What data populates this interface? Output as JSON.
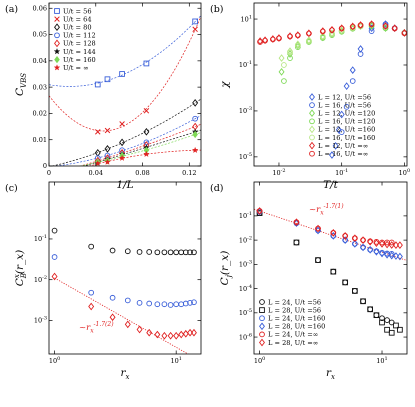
{
  "chart_data": [
    {
      "panel": "(a)",
      "type": "scatter",
      "xlabel": "1/L",
      "ylabel": "C_VBS",
      "xscale": "linear",
      "yscale": "linear",
      "xlim": [
        0,
        0.13
      ],
      "ylim": [
        0,
        0.062
      ],
      "xticks": [
        "0",
        "0.04",
        "0.08",
        "0.12"
      ],
      "yticks": [
        "0",
        "0.01",
        "0.02",
        "0.03",
        "0.04",
        "0.05",
        "0.06"
      ],
      "fit_lines": "dashed quadratic fits per series",
      "legend_position": "top-left",
      "series": [
        {
          "name": "U/t = 56",
          "color": "#3a5fd9",
          "marker": "square-open",
          "x": [
            0.0417,
            0.05,
            0.0625,
            0.0833,
            0.125
          ],
          "y": [
            0.031,
            0.033,
            0.035,
            0.039,
            0.055
          ]
        },
        {
          "name": "U/t = 64",
          "color": "#e02020",
          "marker": "x",
          "x": [
            0.0417,
            0.05,
            0.0625,
            0.0833,
            0.125
          ],
          "y": [
            0.013,
            0.0135,
            0.016,
            0.021,
            0.052
          ]
        },
        {
          "name": "U/t = 80",
          "color": "#111111",
          "marker": "diamond-open",
          "x": [
            0.0417,
            0.05,
            0.0625,
            0.0833,
            0.125
          ],
          "y": [
            0.005,
            0.0065,
            0.009,
            0.013,
            0.024
          ]
        },
        {
          "name": "U/t = 112",
          "color": "#3a5fd9",
          "marker": "circle-open",
          "x": [
            0.0417,
            0.05,
            0.0625,
            0.0833,
            0.125
          ],
          "y": [
            0.003,
            0.004,
            0.006,
            0.009,
            0.018
          ]
        },
        {
          "name": "U/t = 128",
          "color": "#e02020",
          "marker": "diamond-open",
          "x": [
            0.0417,
            0.05,
            0.0625,
            0.0833,
            0.125
          ],
          "y": [
            0.002,
            0.003,
            0.005,
            0.008,
            0.015
          ]
        },
        {
          "name": "U/t = 144",
          "color": "#111111",
          "marker": "star",
          "x": [
            0.0417,
            0.05,
            0.0625,
            0.0833,
            0.125
          ],
          "y": [
            0.0015,
            0.0025,
            0.0045,
            0.007,
            0.013
          ]
        },
        {
          "name": "U/t = 160",
          "color": "#7ed957",
          "marker": "diamond",
          "x": [
            0.0417,
            0.05,
            0.0625,
            0.0833,
            0.125
          ],
          "y": [
            0.0015,
            0.002,
            0.004,
            0.006,
            0.012
          ]
        },
        {
          "name": "U/t = ∞",
          "color": "#e02020",
          "marker": "star",
          "x": [
            0.0417,
            0.05,
            0.0625,
            0.0833,
            0.125
          ],
          "y": [
            0.001,
            0.0015,
            0.003,
            0.0045,
            0.006
          ]
        }
      ]
    },
    {
      "panel": "(b)",
      "type": "scatter",
      "xlabel": "T/t",
      "ylabel": "χ",
      "xscale": "log",
      "yscale": "log",
      "xlim": [
        0.004,
        1.1
      ],
      "ylim": [
        4e-06,
        50
      ],
      "xticks": [
        "10^-2",
        "10^-1",
        "10^0"
      ],
      "yticks": [
        "10^-5",
        "10^-3",
        "10^-1",
        "10^1"
      ],
      "legend_position": "bottom-right",
      "series": [
        {
          "name": "L = 12, U/t =56",
          "color": "#3a5fd9",
          "marker": "diamond-open",
          "x": [
            0.07,
            0.08,
            0.09,
            0.1,
            0.12,
            0.15,
            0.2,
            0.3,
            0.5,
            0.7,
            1.0
          ],
          "y": [
            1.2e-05,
            3e-05,
            0.00015,
            0.0007,
            0.012,
            0.06,
            0.5,
            4,
            6,
            4,
            2.5
          ]
        },
        {
          "name": "L = 16, U/t =56",
          "color": "#3a5fd9",
          "marker": "circle-open",
          "x": [
            0.1,
            0.12,
            0.15,
            0.2,
            0.3,
            0.5,
            0.7,
            1.0
          ],
          "y": [
            0.00012,
            0.0015,
            0.02,
            0.3,
            3,
            6,
            4,
            2.5
          ]
        },
        {
          "name": "L = 12, U/t =120",
          "color": "#7ed957",
          "marker": "diamond-open",
          "x": [
            0.011,
            0.015,
            0.02,
            0.03,
            0.05,
            0.07,
            0.1,
            0.15,
            0.2,
            0.3,
            0.5,
            1.0
          ],
          "y": [
            0.05,
            0.3,
            0.7,
            1.1,
            1.6,
            2.2,
            3,
            4,
            5,
            5,
            4,
            2.5
          ]
        },
        {
          "name": "L = 16, U/t =120",
          "color": "#7ed957",
          "marker": "circle-open",
          "x": [
            0.012,
            0.015,
            0.02,
            0.03,
            0.05,
            0.07,
            0.1,
            0.15,
            0.2,
            0.3,
            0.5,
            1.0
          ],
          "y": [
            0.02,
            0.2,
            0.6,
            1.0,
            1.5,
            2.0,
            2.8,
            3.8,
            4.8,
            5,
            4,
            2.5
          ]
        },
        {
          "name": "L = 12, U/t =160",
          "color": "#b6e685",
          "marker": "diamond-open",
          "x": [
            0.011,
            0.015,
            0.02,
            0.03,
            0.05,
            0.07,
            0.1,
            0.15,
            0.2
          ],
          "y": [
            0.2,
            0.4,
            0.8,
            1.2,
            1.8,
            2.4,
            3.2,
            4.2,
            5
          ]
        },
        {
          "name": "L = 16, U/t =160",
          "color": "#b6e685",
          "marker": "circle-open",
          "x": [
            0.012,
            0.015,
            0.02,
            0.03,
            0.05,
            0.07,
            0.1,
            0.15,
            0.2
          ],
          "y": [
            0.1,
            0.35,
            0.7,
            1.1,
            1.7,
            2.3,
            3.1,
            4.1,
            4.9
          ]
        },
        {
          "name": "L = 12, U/t =∞",
          "color": "#e02020",
          "marker": "diamond-open",
          "x": [
            0.005,
            0.006,
            0.008,
            0.01,
            0.015,
            0.02,
            0.03,
            0.05,
            0.07,
            0.1,
            0.15,
            0.2,
            0.3,
            0.5,
            0.7,
            1.0
          ],
          "y": [
            1.1,
            1.2,
            1.35,
            1.5,
            1.8,
            2.0,
            2.4,
            3.0,
            3.4,
            4.0,
            4.8,
            5.5,
            6,
            5,
            4,
            2.5
          ]
        },
        {
          "name": "L = 16, U/t =∞",
          "color": "#e02020",
          "marker": "circle-open",
          "x": [
            0.005,
            0.006,
            0.008,
            0.01,
            0.015,
            0.02,
            0.03,
            0.05,
            0.07,
            0.1,
            0.15,
            0.2,
            0.3,
            0.5,
            0.7,
            1.0
          ],
          "y": [
            1.0,
            1.15,
            1.3,
            1.45,
            1.75,
            1.95,
            2.35,
            2.9,
            3.3,
            3.9,
            4.7,
            5.4,
            5.9,
            4.9,
            3.9,
            2.4
          ]
        }
      ]
    },
    {
      "panel": "(c)",
      "type": "scatter",
      "xlabel": "r_x",
      "ylabel": "C_B^x(r_x)",
      "xscale": "log",
      "yscale": "log",
      "xlim": [
        0.9,
        16
      ],
      "ylim": [
        0.00015,
        2.5
      ],
      "xticks": [
        "10^0",
        "10^1"
      ],
      "yticks": [
        "10^-3",
        "10^-2",
        "10^-1"
      ],
      "annotation": "~r_x^-1.7(2)",
      "series": [
        {
          "name": "black",
          "color": "#111111",
          "marker": "circle-open",
          "x": [
            1,
            2,
            3,
            4,
            5,
            6,
            7,
            8,
            9,
            10,
            11,
            12,
            13,
            14
          ],
          "y": [
            0.16,
            0.065,
            0.052,
            0.05,
            0.048,
            0.048,
            0.047,
            0.047,
            0.047,
            0.047,
            0.047,
            0.047,
            0.047,
            0.047
          ]
        },
        {
          "name": "blue",
          "color": "#3a5fd9",
          "marker": "circle-open",
          "x": [
            1,
            2,
            3,
            4,
            5,
            6,
            7,
            8,
            9,
            10,
            11,
            12,
            13,
            14
          ],
          "y": [
            0.036,
            0.0048,
            0.0036,
            0.0031,
            0.0027,
            0.0026,
            0.0025,
            0.0025,
            0.0024,
            0.0025,
            0.0025,
            0.0026,
            0.0027,
            0.0028
          ]
        },
        {
          "name": "red",
          "color": "#e02020",
          "marker": "diamond-open",
          "x": [
            1,
            2,
            3,
            4,
            5,
            6,
            7,
            8,
            9,
            10,
            11,
            12,
            13,
            14
          ],
          "y": [
            0.012,
            0.0022,
            0.0012,
            0.0008,
            0.0006,
            0.0005,
            0.00045,
            0.00042,
            0.00042,
            0.00042,
            0.00045,
            0.00047,
            0.0005,
            0.0005
          ]
        }
      ]
    },
    {
      "panel": "(d)",
      "type": "scatter",
      "xlabel": "r_x",
      "ylabel": "C_j(r_x)",
      "xscale": "log",
      "yscale": "log",
      "xlim": [
        0.9,
        16
      ],
      "ylim": [
        2e-07,
        2.5
      ],
      "xticks": [
        "10^0",
        "10^1"
      ],
      "yticks": [
        "10^-6",
        "10^-5",
        "10^-4",
        "10^-3",
        "10^-2",
        "10^-1"
      ],
      "annotation": "~r_x^-1.7(1)",
      "legend_position": "bottom-left",
      "series": [
        {
          "name": "L = 24, U/t =56",
          "color": "#111111",
          "marker": "circle-open",
          "x": [
            1,
            2,
            3,
            4,
            5,
            6,
            7,
            8,
            9,
            10,
            11,
            12
          ],
          "y": [
            0.13,
            0.008,
            0.0015,
            0.0005,
            0.00018,
            8e-05,
            3e-05,
            1.4e-05,
            8e-06,
            6e-06,
            5e-06,
            4e-06
          ]
        },
        {
          "name": "L = 28, U/t =56",
          "color": "#111111",
          "marker": "square-open",
          "x": [
            1,
            2,
            3,
            4,
            5,
            6,
            7,
            8,
            9,
            10,
            11,
            12,
            13,
            14
          ],
          "y": [
            0.13,
            0.008,
            0.0015,
            0.0005,
            0.00018,
            8e-05,
            3e-05,
            1.4e-05,
            8e-06,
            4e-06,
            2e-06,
            1.5e-06,
            3e-06,
            2e-06
          ]
        },
        {
          "name": "L = 24, U/t =160",
          "color": "#3a5fd9",
          "marker": "circle-open",
          "x": [
            1,
            2,
            3,
            4,
            5,
            6,
            7,
            8,
            9,
            10,
            11,
            12
          ],
          "y": [
            0.15,
            0.05,
            0.025,
            0.015,
            0.01,
            0.007,
            0.005,
            0.004,
            0.0035,
            0.003,
            0.0028,
            0.0027
          ]
        },
        {
          "name": "L = 28, U/t =160",
          "color": "#3a5fd9",
          "marker": "diamond-open",
          "x": [
            1,
            2,
            3,
            4,
            5,
            6,
            7,
            8,
            9,
            10,
            11,
            12,
            13,
            14
          ],
          "y": [
            0.15,
            0.05,
            0.025,
            0.015,
            0.01,
            0.007,
            0.005,
            0.004,
            0.0033,
            0.0028,
            0.0025,
            0.0023,
            0.0022,
            0.0021
          ]
        },
        {
          "name": "L = 24, U/t =∞",
          "color": "#e02020",
          "marker": "circle-open",
          "x": [
            1,
            2,
            3,
            4,
            5,
            6,
            7,
            8,
            9,
            10,
            11,
            12
          ],
          "y": [
            0.16,
            0.055,
            0.03,
            0.02,
            0.015,
            0.012,
            0.01,
            0.009,
            0.0085,
            0.008,
            0.008,
            0.008
          ]
        },
        {
          "name": "L = 28, U/t =∞",
          "color": "#e02020",
          "marker": "diamond-open",
          "x": [
            1,
            2,
            3,
            4,
            5,
            6,
            7,
            8,
            9,
            10,
            11,
            12,
            13,
            14
          ],
          "y": [
            0.16,
            0.055,
            0.03,
            0.02,
            0.015,
            0.012,
            0.01,
            0.0085,
            0.0075,
            0.007,
            0.0066,
            0.0063,
            0.0062,
            0.0062
          ]
        }
      ]
    }
  ]
}
